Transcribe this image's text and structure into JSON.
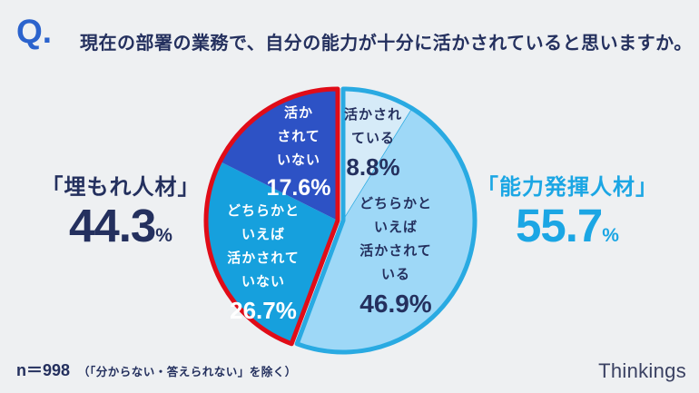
{
  "header": {
    "q_mark": "Q.",
    "title": "現在の部署の業務で、自分の能力が十分に活かされていると思いますか。"
  },
  "summary_left": {
    "label": "「埋もれ人材」",
    "value": "44.3",
    "unit": "%"
  },
  "summary_right": {
    "label": "「能力発揮人材」",
    "value": "55.7",
    "unit": "%"
  },
  "footnote": {
    "n_label": "n＝998",
    "note": "（「分からない・答えられない」を除く）"
  },
  "logo_text": "Thinkings",
  "colors": {
    "background": "#eef0f2",
    "navy": "#24305e",
    "q_blue": "#2b63cd",
    "sky_accent": "#1ba6e4",
    "red_outline": "#e00c18",
    "blue_outline": "#29aae2"
  },
  "chart_data": {
    "type": "pie",
    "title": "現在の部署の業務で、自分の能力が十分に活かされていると思いますか。",
    "n": 998,
    "start_angle": "12-oclock",
    "direction": "clockwise",
    "slices": [
      {
        "label": "活かされている",
        "value": 8.8,
        "pct": "8.8%",
        "color": "#d6ebf8",
        "text_color": "#24305e",
        "divider_color": "#29aae2",
        "lines": [
          "活かされ",
          "ている"
        ]
      },
      {
        "label": "どちらかといえば活かされている",
        "value": 46.9,
        "pct": "46.9%",
        "color": "#9ed8f7",
        "text_color": "#24305e",
        "lines": [
          "どちらかと",
          "いえば",
          "活かされて",
          "いる"
        ]
      },
      {
        "label": "どちらかといえば活かされていない",
        "value": 26.7,
        "pct": "26.7%",
        "color": "#16a0dd",
        "text_color": "#ffffff",
        "lines": [
          "どちらかと",
          "いえば",
          "活かされて",
          "いない"
        ]
      },
      {
        "label": "活かされていない",
        "value": 17.6,
        "pct": "17.6%",
        "color": "#2d52c5",
        "text_color": "#ffffff",
        "lines": [
          "活か",
          "されて",
          "いない"
        ]
      }
    ],
    "groups": [
      {
        "name": "能力発揮人材",
        "total": 55.7,
        "outline_color": "#29aae2",
        "slice_indexes": [
          0,
          1
        ]
      },
      {
        "name": "埋もれ人材",
        "total": 44.3,
        "outline_color": "#e00c18",
        "slice_indexes": [
          2,
          3
        ]
      }
    ]
  }
}
